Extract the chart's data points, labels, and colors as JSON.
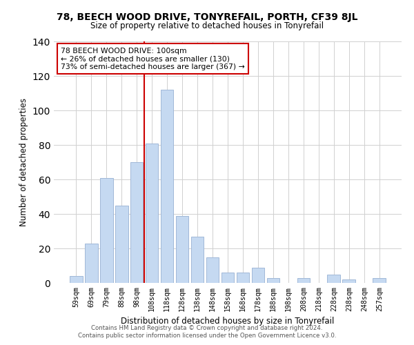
{
  "title": "78, BEECH WOOD DRIVE, TONYREFAIL, PORTH, CF39 8JL",
  "subtitle": "Size of property relative to detached houses in Tonyrefail",
  "xlabel": "Distribution of detached houses by size in Tonyrefail",
  "ylabel": "Number of detached properties",
  "bar_labels": [
    "59sqm",
    "69sqm",
    "79sqm",
    "88sqm",
    "98sqm",
    "108sqm",
    "118sqm",
    "128sqm",
    "138sqm",
    "148sqm",
    "158sqm",
    "168sqm",
    "178sqm",
    "188sqm",
    "198sqm",
    "208sqm",
    "218sqm",
    "228sqm",
    "238sqm",
    "248sqm",
    "257sqm"
  ],
  "bar_values": [
    4,
    23,
    61,
    45,
    70,
    81,
    112,
    39,
    27,
    15,
    6,
    6,
    9,
    3,
    0,
    3,
    0,
    5,
    2,
    0,
    3
  ],
  "bar_color": "#c5d9f1",
  "bar_edge_color": "#a0b8d8",
  "vline_x_index": 4,
  "vline_color": "#cc0000",
  "annotation_text": "78 BEECH WOOD DRIVE: 100sqm\n← 26% of detached houses are smaller (130)\n73% of semi-detached houses are larger (367) →",
  "annotation_box_color": "#ffffff",
  "annotation_box_edge": "#cc0000",
  "ylim": [
    0,
    140
  ],
  "yticks": [
    0,
    20,
    40,
    60,
    80,
    100,
    120,
    140
  ],
  "footer1": "Contains HM Land Registry data © Crown copyright and database right 2024.",
  "footer2": "Contains public sector information licensed under the Open Government Licence v3.0."
}
